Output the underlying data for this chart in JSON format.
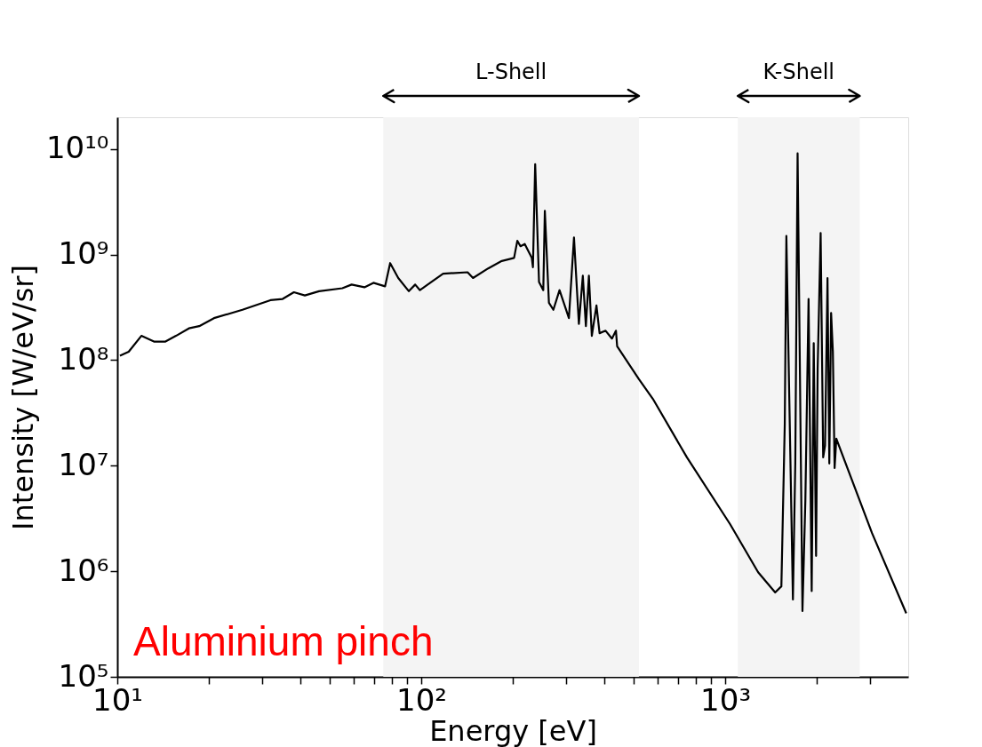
{
  "chart_data": {
    "type": "line",
    "xlabel": "Energy [eV]",
    "ylabel": "Intensity [W/eV/sr]",
    "annotations": [
      "Aluminium pinch"
    ],
    "bands": [
      {
        "axis": "x",
        "from": 75,
        "to": 520,
        "label": "L-Shell",
        "color": "#f4f4f4"
      },
      {
        "axis": "x",
        "from": 1100,
        "to": 2770,
        "label": "K-Shell",
        "color": "#f4f4f4"
      }
    ],
    "log": "xy",
    "grid": false,
    "legend": false,
    "marker": "none",
    "line_style": "solid",
    "xlim": [
      10,
      4000
    ],
    "ylim": [
      100000,
      20000000000
    ],
    "xticks": [
      {
        "value": 10,
        "label": "10¹"
      },
      {
        "value": 20,
        "label": null
      },
      {
        "value": 30,
        "label": null
      },
      {
        "value": 40,
        "label": null
      },
      {
        "value": 50,
        "label": null
      },
      {
        "value": 60,
        "label": null
      },
      {
        "value": 70,
        "label": null
      },
      {
        "value": 80,
        "label": null
      },
      {
        "value": 90,
        "label": null
      },
      {
        "value": 100,
        "label": "10²"
      },
      {
        "value": 200,
        "label": null
      },
      {
        "value": 300,
        "label": null
      },
      {
        "value": 400,
        "label": null
      },
      {
        "value": 500,
        "label": null
      },
      {
        "value": 600,
        "label": null
      },
      {
        "value": 700,
        "label": null
      },
      {
        "value": 800,
        "label": null
      },
      {
        "value": 900,
        "label": null
      },
      {
        "value": 1000,
        "label": "10³"
      },
      {
        "value": 2000,
        "label": null
      },
      {
        "value": 3000,
        "label": null
      }
    ],
    "yticks": [
      {
        "value": 100000,
        "label": "10⁵"
      },
      {
        "value": 1000000,
        "label": "10⁶"
      },
      {
        "value": 10000000,
        "label": "10⁷"
      },
      {
        "value": 100000000,
        "label": "10⁸"
      },
      {
        "value": 1000000000,
        "label": "10⁹"
      },
      {
        "value": 10000000000,
        "label": "10¹⁰"
      }
    ],
    "series": [
      {
        "color": "#000000",
        "x": [
          10.2,
          10.9,
          12.0,
          13.2,
          14.4,
          15.6,
          17.2,
          18.6,
          20.8,
          25.8,
          31.9,
          35.0,
          38.1,
          41.4,
          46.1,
          55,
          59,
          65,
          69.6,
          76,
          79,
          84,
          91,
          95.5,
          99,
          107,
          118,
          142,
          148,
          166,
          184,
          202,
          207,
          212,
          219,
          231,
          233,
          237,
          244,
          252,
          255,
          263,
          272,
          285,
          306,
          318,
          330,
          340,
          348,
          356,
          364,
          377,
          386,
          404,
          424,
          437,
          441,
          520,
          578,
          748,
          1037,
          1283,
          1460,
          1530,
          1570,
          1589,
          1670,
          1700,
          1730,
          1795,
          1835,
          1880,
          1925,
          1955,
          1990,
          2014,
          2060,
          2100,
          2130,
          2170,
          2200,
          2230,
          2260,
          2290,
          2320,
          3040,
          3940
        ],
        "values": [
          110000000.0,
          120000000.0,
          170000000.0,
          150000000.0,
          150000000.0,
          170000000.0,
          200000000.0,
          210000000.0,
          250000000.0,
          300000000.0,
          370000000.0,
          380000000.0,
          440000000.0,
          410000000.0,
          450000000.0,
          480000000.0,
          520000000.0,
          490000000.0,
          540000000.0,
          500000000.0,
          830000000.0,
          600000000.0,
          450000000.0,
          520000000.0,
          460000000.0,
          540000000.0,
          660000000.0,
          680000000.0,
          600000000.0,
          740000000.0,
          870000000.0,
          930000000.0,
          1350000000.0,
          1200000000.0,
          1260000000.0,
          930000000.0,
          760000000.0,
          7200000000.0,
          550000000.0,
          460000000.0,
          2600000000.0,
          350000000.0,
          300000000.0,
          460000000.0,
          250000000.0,
          1450000000.0,
          220000000.0,
          630000000.0,
          210000000.0,
          630000000.0,
          170000000.0,
          330000000.0,
          180000000.0,
          190000000.0,
          160000000.0,
          190000000.0,
          135000000.0,
          66000000.0,
          43000000.0,
          12000000.0,
          2800000.0,
          980000.0,
          630000.0,
          720000.0,
          25000000.0,
          1500000000.0,
          540000.0,
          10500000.0,
          9100000000.0,
          420000.0,
          4700000.0,
          380000000.0,
          650000.0,
          145000000.0,
          1400000.0,
          83000000.0,
          1600000000.0,
          12000000.0,
          15500000.0,
          600000000.0,
          10500000.0,
          280000000.0,
          120000000.0,
          9500000.0,
          18000000.0,
          2300000.0,
          400000.0
        ]
      }
    ]
  }
}
